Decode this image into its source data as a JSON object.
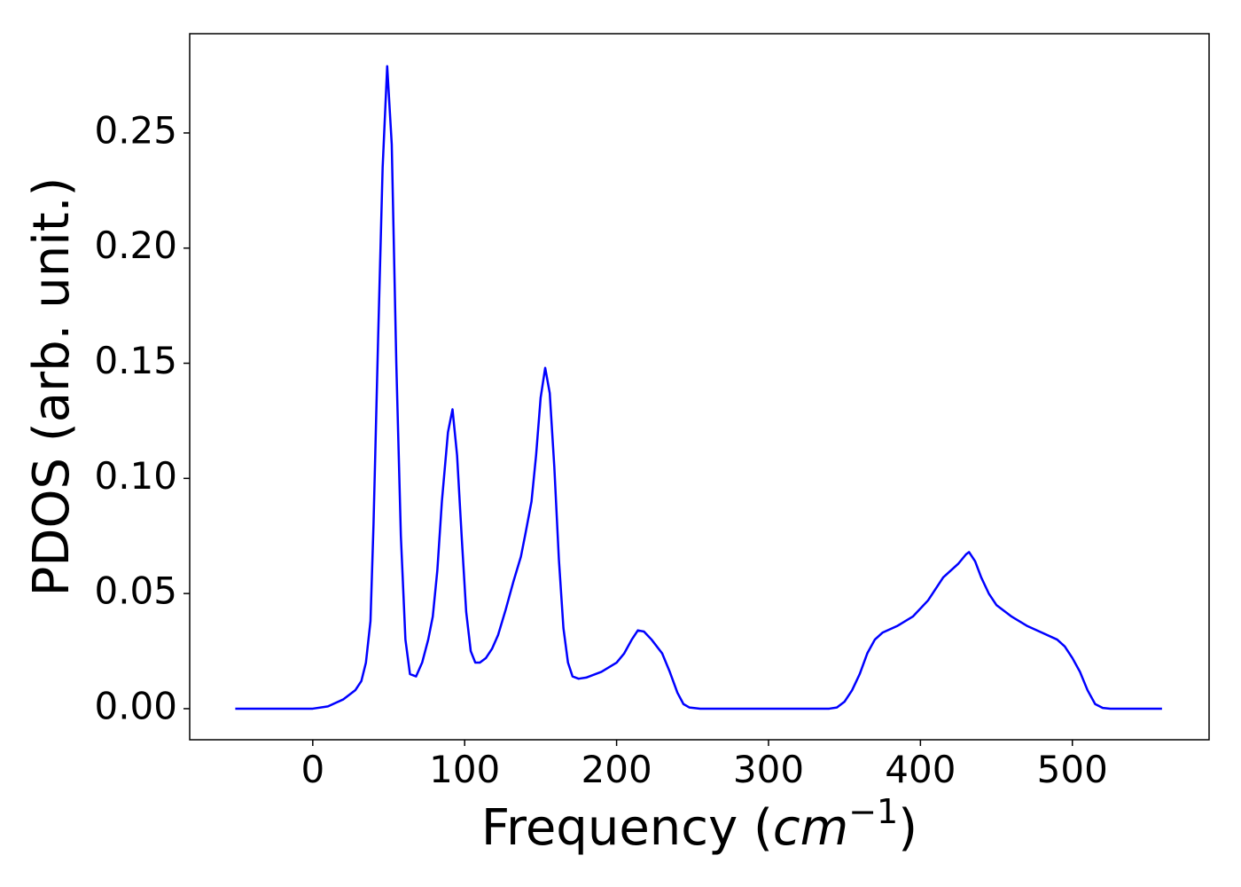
{
  "chart_data": {
    "type": "line",
    "xlabel": {
      "text": "Frequency (",
      "unit": "cm",
      "exponent": "−1",
      "close": ")"
    },
    "ylabel": "PDOS (arb. unit.)",
    "xlim": [
      -81,
      590
    ],
    "ylim": [
      -0.0135,
      0.2931
    ],
    "xticks": [
      0,
      100,
      200,
      300,
      400,
      500
    ],
    "yticks": [
      {
        "value": 0,
        "label": "0.00"
      },
      {
        "value": 0.05,
        "label": "0.05"
      },
      {
        "value": 0.1,
        "label": "0.10"
      },
      {
        "value": 0.15,
        "label": "0.15"
      },
      {
        "value": 0.2,
        "label": "0.20"
      },
      {
        "value": 0.25,
        "label": "0.25"
      }
    ],
    "grid": false,
    "x": [
      -51,
      -40,
      -20,
      0,
      10,
      20,
      28,
      32,
      35,
      38,
      40,
      43,
      46,
      49,
      52,
      55,
      58,
      61,
      64,
      68,
      72,
      76,
      79,
      82,
      85,
      89,
      92,
      95,
      98,
      101,
      104,
      107,
      110,
      114,
      118,
      122,
      127,
      132,
      137,
      140,
      144,
      147,
      150,
      153,
      156,
      159,
      162,
      165,
      168,
      171,
      175,
      180,
      190,
      200,
      205,
      210,
      214,
      218,
      223,
      230,
      235,
      240,
      244,
      248,
      255,
      300,
      340,
      345,
      350,
      355,
      360,
      365,
      370,
      375,
      385,
      395,
      405,
      410,
      415,
      420,
      425,
      430,
      432,
      436,
      440,
      445,
      450,
      460,
      470,
      480,
      490,
      495,
      500,
      505,
      510,
      515,
      520,
      525,
      559
    ],
    "series": [
      {
        "name": "PDOS",
        "color": "#0000ff",
        "values": [
          0,
          0,
          0,
          0,
          0.001,
          0.004,
          0.008,
          0.012,
          0.02,
          0.038,
          0.08,
          0.16,
          0.235,
          0.279,
          0.245,
          0.15,
          0.075,
          0.03,
          0.015,
          0.014,
          0.02,
          0.03,
          0.04,
          0.06,
          0.09,
          0.12,
          0.13,
          0.11,
          0.075,
          0.042,
          0.025,
          0.02,
          0.02,
          0.022,
          0.026,
          0.032,
          0.043,
          0.055,
          0.066,
          0.076,
          0.09,
          0.11,
          0.135,
          0.148,
          0.137,
          0.105,
          0.065,
          0.035,
          0.02,
          0.014,
          0.013,
          0.0135,
          0.016,
          0.02,
          0.024,
          0.03,
          0.034,
          0.0335,
          0.03,
          0.024,
          0.016,
          0.007,
          0.002,
          0.0005,
          0,
          0,
          0,
          0.0005,
          0.003,
          0.008,
          0.015,
          0.024,
          0.03,
          0.033,
          0.036,
          0.04,
          0.047,
          0.052,
          0.057,
          0.06,
          0.063,
          0.067,
          0.068,
          0.064,
          0.057,
          0.05,
          0.045,
          0.04,
          0.036,
          0.033,
          0.03,
          0.027,
          0.022,
          0.016,
          0.008,
          0.002,
          0.0003,
          0,
          0
        ]
      }
    ]
  }
}
